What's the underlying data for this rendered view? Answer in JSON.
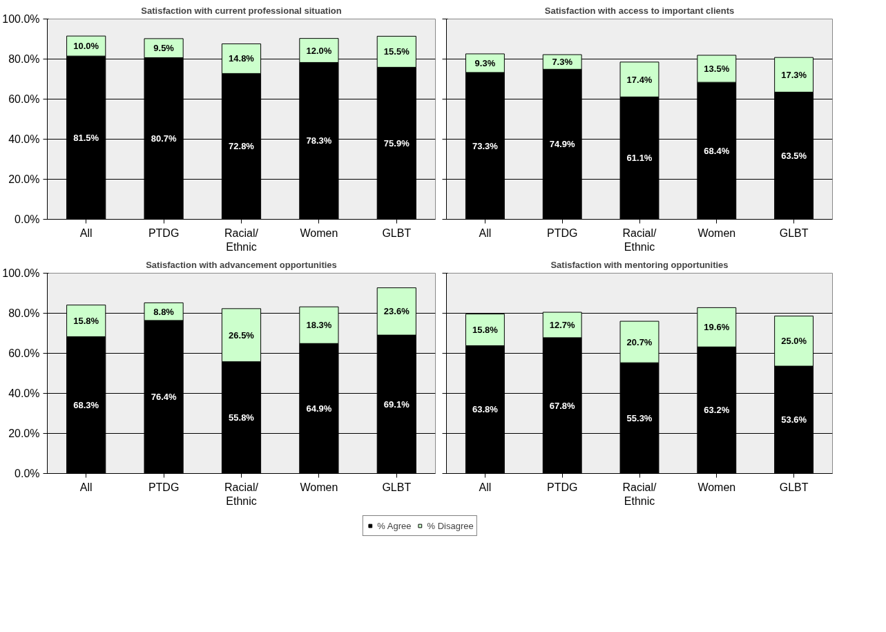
{
  "chart_data": [
    {
      "type": "bar",
      "stacked": true,
      "title": "Satisfaction with current professional situation",
      "categories": [
        "All",
        "PTDG",
        "Racial/\nEthnic",
        "Women",
        "GLBT"
      ],
      "ylim": [
        0,
        100
      ],
      "yticks": [
        {
          "value": 0,
          "label": "0.0%"
        },
        {
          "value": 20,
          "label": "20.0%"
        },
        {
          "value": 40,
          "label": "40.0%"
        },
        {
          "value": 60,
          "label": "60.0%"
        },
        {
          "value": 80,
          "label": "80.0%"
        },
        {
          "value": 100,
          "label": "100.0%"
        }
      ],
      "grid": "y",
      "legend": "bottom",
      "series": [
        {
          "name": "% Agree",
          "color": "#000000",
          "values": [
            81.5,
            80.7,
            72.8,
            78.3,
            75.9
          ],
          "value_labels": [
            "81.5%",
            "80.7%",
            "72.8%",
            "78.3%",
            "75.9%"
          ]
        },
        {
          "name": "% Disagree",
          "color": "#ccffcc",
          "values": [
            10.0,
            9.5,
            14.8,
            12.0,
            15.5
          ],
          "value_labels": [
            "10.0%",
            "9.5%",
            "14.8%",
            "12.0%",
            "15.5%"
          ]
        }
      ]
    },
    {
      "type": "bar",
      "stacked": true,
      "title": "Satisfaction with access to important clients",
      "categories": [
        "All",
        "PTDG",
        "Racial/\nEthnic",
        "Women",
        "GLBT"
      ],
      "ylim": [
        0,
        100
      ],
      "yticks": [
        {
          "value": 0,
          "label": null
        },
        {
          "value": 20,
          "label": null
        },
        {
          "value": 40,
          "label": null
        },
        {
          "value": 60,
          "label": null
        },
        {
          "value": 80,
          "label": null
        },
        {
          "value": 100,
          "label": null
        }
      ],
      "grid": "y",
      "tick_labels": "x",
      "series": [
        {
          "color": "#000000",
          "values": [
            73.3,
            74.9,
            61.1,
            68.4,
            63.5
          ],
          "value_labels": [
            "73.3%",
            "74.9%",
            "61.1%",
            "68.4%",
            "63.5%"
          ]
        },
        {
          "color": "#ccffcc",
          "values": [
            9.3,
            7.3,
            17.4,
            13.5,
            17.3
          ],
          "value_labels": [
            "9.3%",
            "7.3%",
            "17.4%",
            "13.5%",
            "17.3%"
          ]
        }
      ]
    },
    {
      "type": "bar",
      "stacked": true,
      "title": "Satisfaction with advancement opportunities",
      "categories": [
        "All",
        "PTDG",
        "Racial/\nEthnic",
        "Women",
        "GLBT"
      ],
      "ylim": [
        0,
        100
      ],
      "yticks": [
        {
          "value": 0,
          "label": "0.0%"
        },
        {
          "value": 20,
          "label": "20.0%"
        },
        {
          "value": 40,
          "label": "40.0%"
        },
        {
          "value": 60,
          "label": "60.0%"
        },
        {
          "value": 80,
          "label": "80.0%"
        },
        {
          "value": 100,
          "label": "100.0%"
        }
      ],
      "grid": "y",
      "series": [
        {
          "color": "#000000",
          "values": [
            68.3,
            76.4,
            55.8,
            64.9,
            69.1
          ],
          "value_labels": [
            "68.3%",
            "76.4%",
            "55.8%",
            "64.9%",
            "69.1%"
          ]
        },
        {
          "color": "#ccffcc",
          "values": [
            15.8,
            8.8,
            26.5,
            18.3,
            23.6
          ],
          "value_labels": [
            "15.8%",
            "8.8%",
            "26.5%",
            "18.3%",
            "23.6%"
          ]
        }
      ]
    },
    {
      "type": "bar",
      "stacked": true,
      "title": "Satisfaction with mentoring opportunities",
      "categories": [
        "All",
        "PTDG",
        "Racial/\nEthnic",
        "Women",
        "GLBT"
      ],
      "ylim": [
        0,
        100
      ],
      "yticks": [
        {
          "value": 0,
          "label": null
        },
        {
          "value": 20,
          "label": null
        },
        {
          "value": 40,
          "label": null
        },
        {
          "value": 60,
          "label": null
        },
        {
          "value": 80,
          "label": null
        },
        {
          "value": 100,
          "label": null
        }
      ],
      "grid": "y",
      "tick_labels": "x",
      "series": [
        {
          "color": "#000000",
          "values": [
            63.8,
            67.8,
            55.3,
            63.2,
            53.6
          ],
          "value_labels": [
            "63.8%",
            "67.8%",
            "55.3%",
            "63.2%",
            "53.6%"
          ]
        },
        {
          "color": "#ccffcc",
          "values": [
            15.8,
            12.7,
            20.7,
            19.6,
            25.0
          ],
          "value_labels": [
            "15.8%",
            "12.7%",
            "20.7%",
            "19.6%",
            "25.0%"
          ]
        }
      ]
    }
  ]
}
